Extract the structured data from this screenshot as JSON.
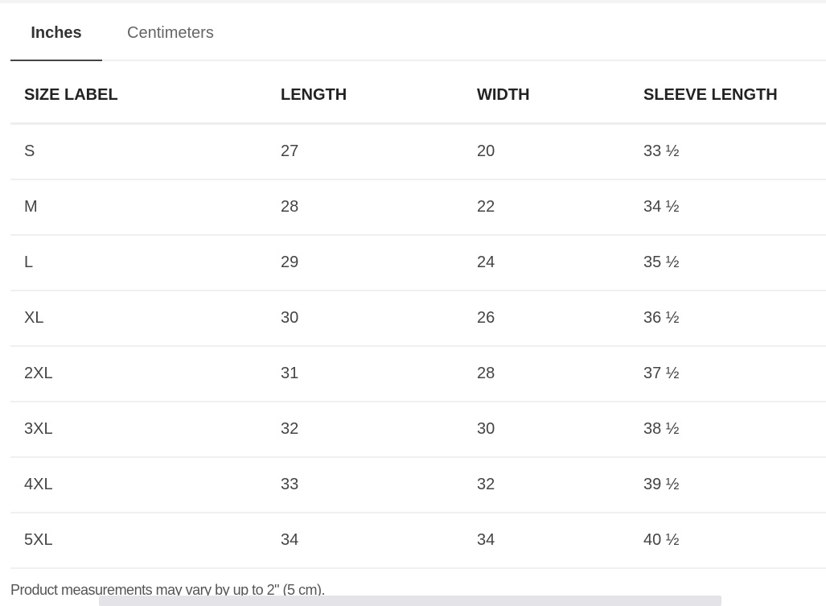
{
  "tabs": [
    {
      "label": "Inches",
      "active": true
    },
    {
      "label": "Centimeters",
      "active": false
    }
  ],
  "table": {
    "headers": [
      "SIZE LABEL",
      "LENGTH",
      "WIDTH",
      "SLEEVE LENGTH"
    ],
    "rows": [
      [
        "S",
        "27",
        "20",
        "33 ½"
      ],
      [
        "M",
        "28",
        "22",
        "34 ½"
      ],
      [
        "L",
        "29",
        "24",
        "35 ½"
      ],
      [
        "XL",
        "30",
        "26",
        "36 ½"
      ],
      [
        "2XL",
        "31",
        "28",
        "37 ½"
      ],
      [
        "3XL",
        "32",
        "30",
        "38 ½"
      ],
      [
        "4XL",
        "33",
        "32",
        "39 ½"
      ],
      [
        "5XL",
        "34",
        "34",
        "40 ½"
      ]
    ]
  },
  "note": "Product measurements may vary by up to 2\" (5 cm)."
}
